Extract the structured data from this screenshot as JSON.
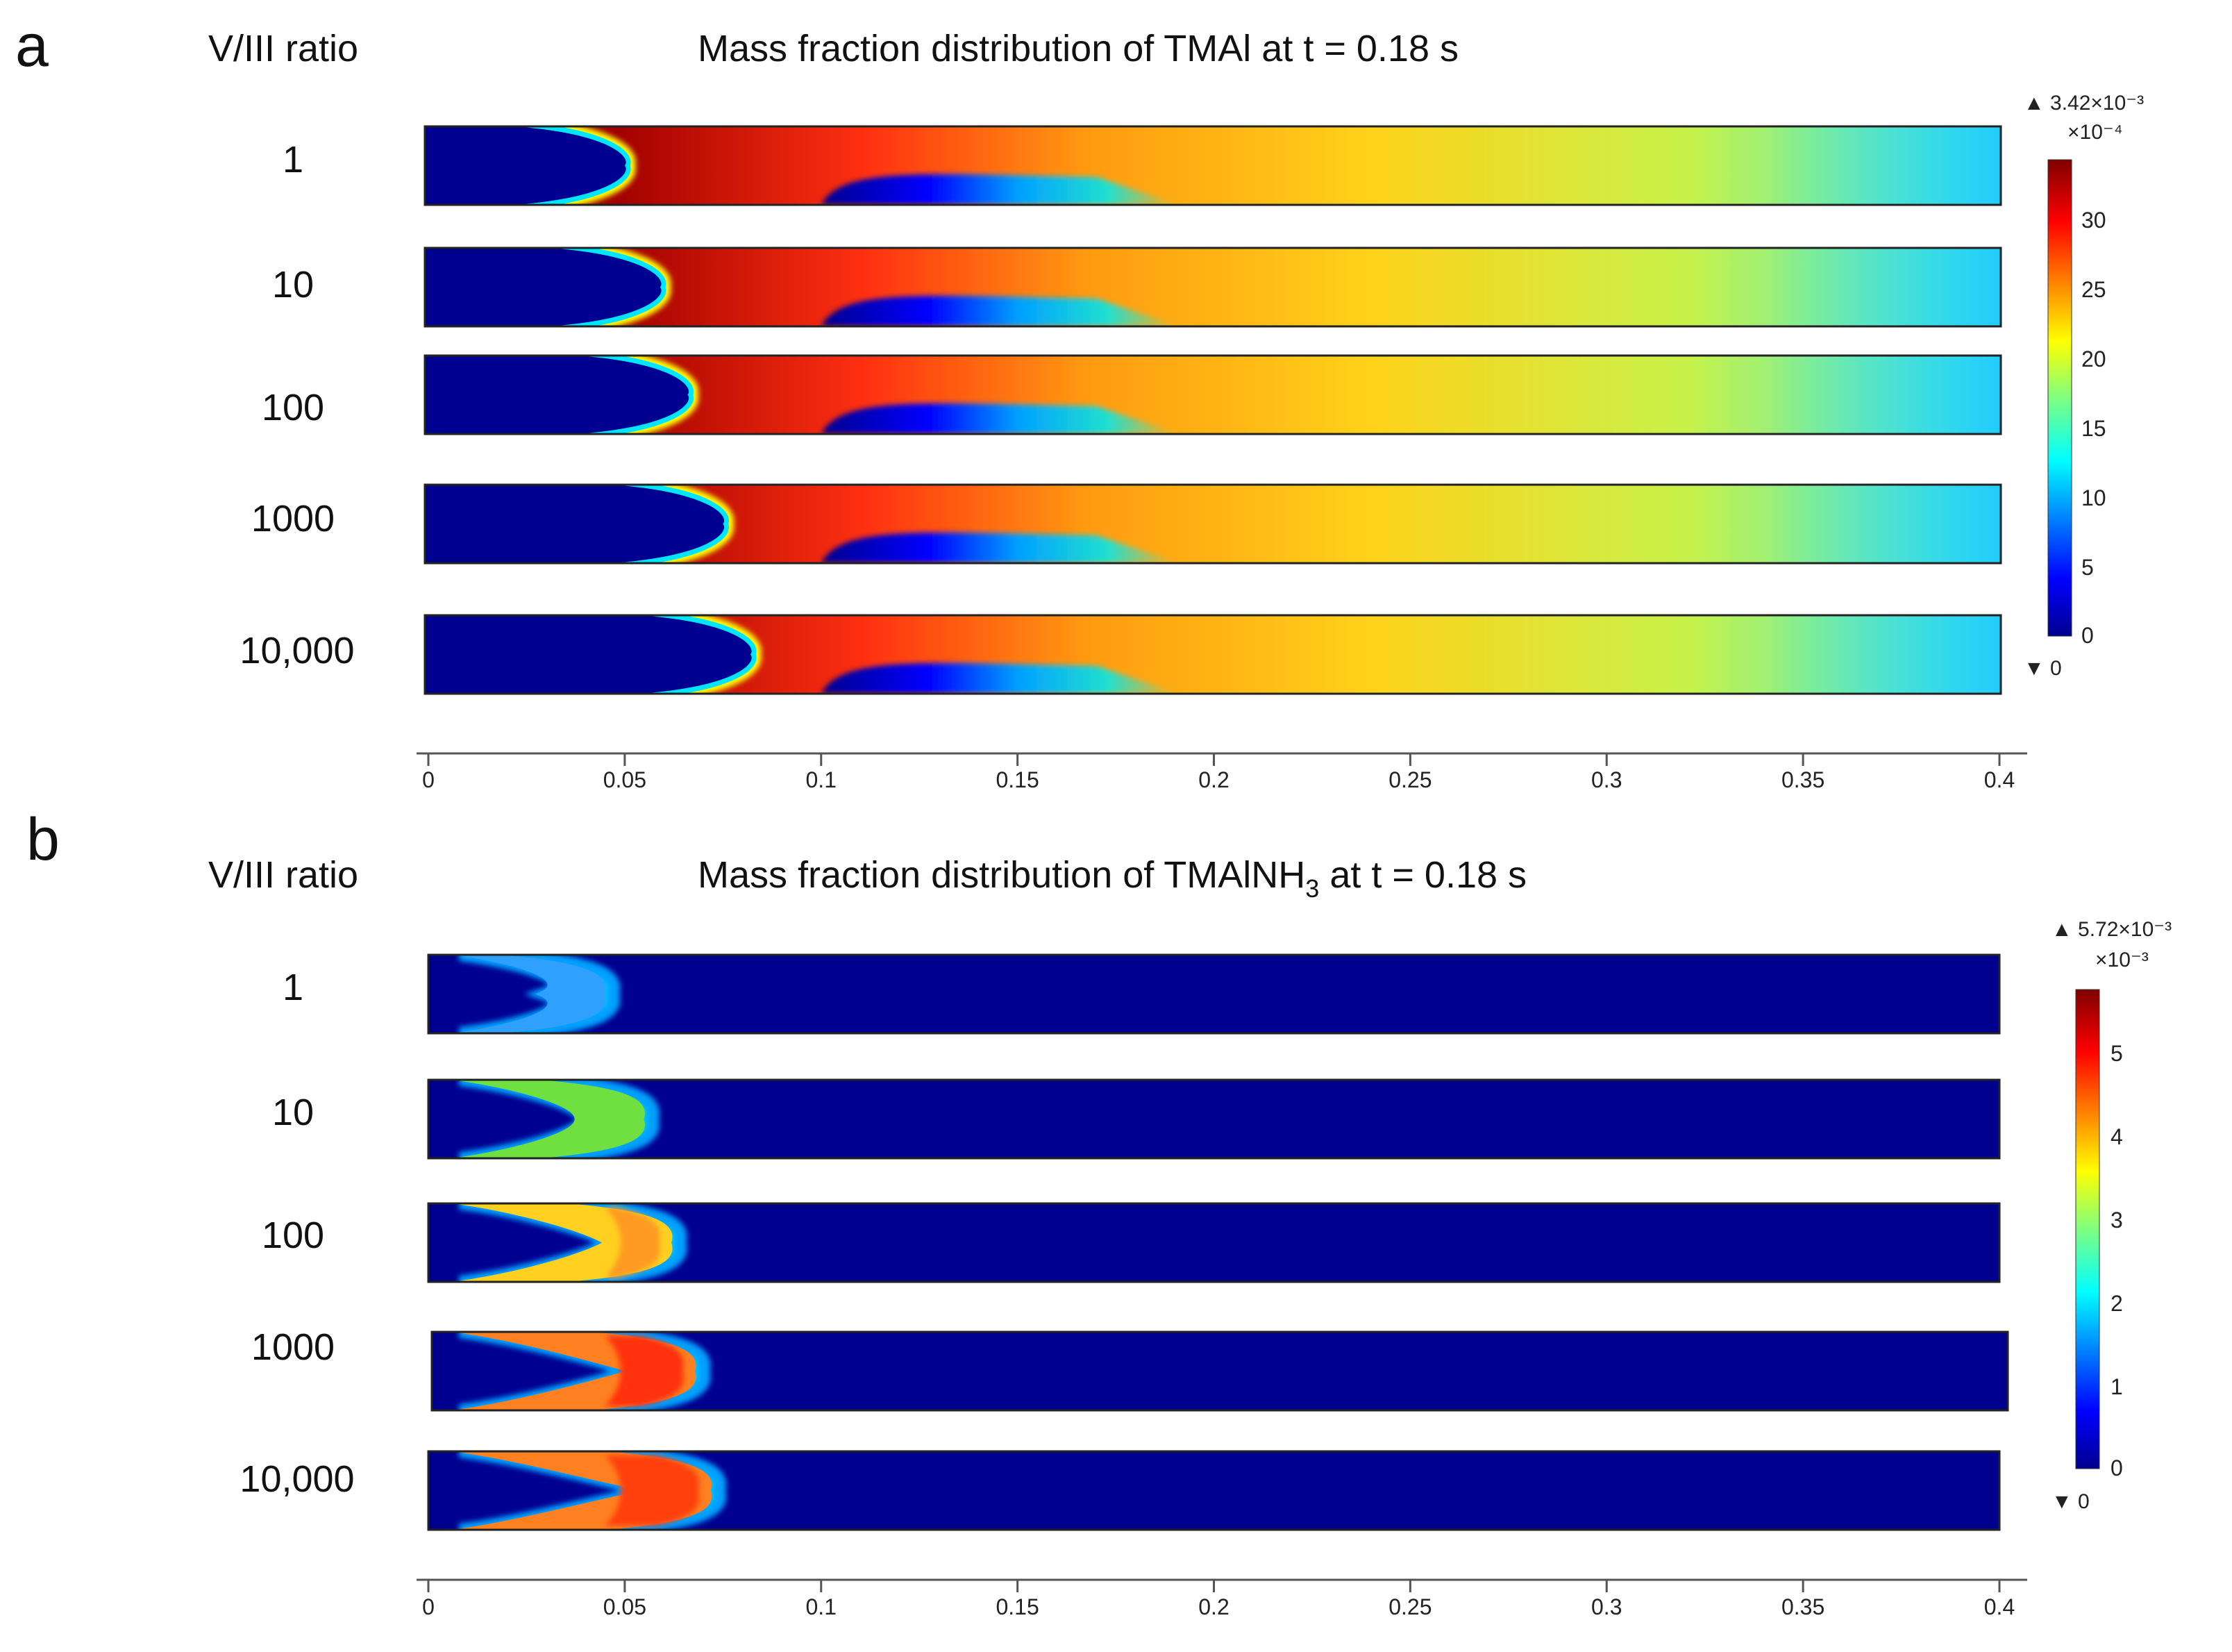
{
  "chart_data": [
    {
      "type": "heatmap",
      "panel_label": "a",
      "row_header": "V/III ratio",
      "title": "Mass fraction distribution of TMAl at t = 0.18 s",
      "rows": [
        "1",
        "10",
        "100",
        "1000",
        "10,000"
      ],
      "x_ticks": [
        "0",
        "0.05",
        "0.1",
        "0.15",
        "0.2",
        "0.25",
        "0.3",
        "0.35",
        "0.4"
      ],
      "xlim": [
        0,
        0.4
      ],
      "colorbar": {
        "max_label": "▲ 3.42×10⁻³",
        "scale_label": "×10⁻⁴",
        "ticks": [
          "30",
          "25",
          "20",
          "15",
          "10",
          "5",
          "0"
        ],
        "min_label": "▼ 0",
        "range": [
          0,
          34.2
        ]
      }
    },
    {
      "type": "heatmap",
      "panel_label": "b",
      "row_header": "V/III ratio",
      "title": "Mass fraction distribution of TMAlNH",
      "title_sub": "3",
      "title_tail": " at t = 0.18 s",
      "rows": [
        "1",
        "10",
        "100",
        "1000",
        "10,000"
      ],
      "x_ticks": [
        "0",
        "0.05",
        "0.1",
        "0.15",
        "0.2",
        "0.25",
        "0.3",
        "0.35",
        "0.4"
      ],
      "xlim": [
        0,
        0.4
      ],
      "colorbar": {
        "max_label": "▲ 5.72×10⁻³",
        "scale_label": "×10⁻³",
        "ticks": [
          "5",
          "4",
          "3",
          "2",
          "1",
          "0"
        ],
        "min_label": "▼ 0",
        "range": [
          0,
          5.72
        ]
      }
    }
  ]
}
